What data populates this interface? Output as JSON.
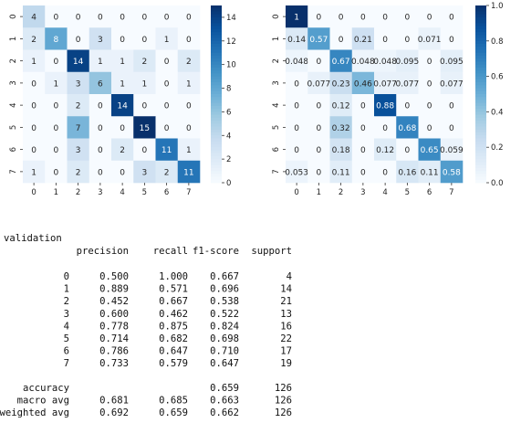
{
  "colors": {
    "scale": [
      "#f7fbff",
      "#deebf7",
      "#c6dbef",
      "#9ecae1",
      "#6baed6",
      "#4292c6",
      "#2171b5",
      "#08519c",
      "#08306b"
    ],
    "text_light": "#ffffff",
    "text_dark": "#262626"
  },
  "chart_data": [
    {
      "type": "heatmap",
      "title": "",
      "x": [
        "0",
        "1",
        "2",
        "3",
        "4",
        "5",
        "6",
        "7"
      ],
      "y": [
        "0",
        "1",
        "2",
        "3",
        "4",
        "5",
        "6",
        "7"
      ],
      "vmin": 0,
      "vmax": 15,
      "colorbar_ticks": [
        "0",
        "2",
        "4",
        "6",
        "8",
        "10",
        "12",
        "14"
      ],
      "colorbar_tick_values": [
        0,
        2,
        4,
        6,
        8,
        10,
        12,
        14
      ],
      "values": [
        [
          4,
          0,
          0,
          0,
          0,
          0,
          0,
          0
        ],
        [
          2,
          8,
          0,
          3,
          0,
          0,
          1,
          0
        ],
        [
          1,
          0,
          14,
          1,
          1,
          2,
          0,
          2
        ],
        [
          0,
          1,
          3,
          6,
          1,
          1,
          0,
          1
        ],
        [
          0,
          0,
          2,
          0,
          14,
          0,
          0,
          0
        ],
        [
          0,
          0,
          7,
          0,
          0,
          15,
          0,
          0
        ],
        [
          0,
          0,
          3,
          0,
          2,
          0,
          11,
          1
        ],
        [
          1,
          0,
          2,
          0,
          0,
          3,
          2,
          11
        ]
      ],
      "labels": [
        [
          "4",
          "0",
          "0",
          "0",
          "0",
          "0",
          "0",
          "0"
        ],
        [
          "2",
          "8",
          "0",
          "3",
          "0",
          "0",
          "1",
          "0"
        ],
        [
          "1",
          "0",
          "14",
          "1",
          "1",
          "2",
          "0",
          "2"
        ],
        [
          "0",
          "1",
          "3",
          "6",
          "1",
          "1",
          "0",
          "1"
        ],
        [
          "0",
          "0",
          "2",
          "0",
          "14",
          "0",
          "0",
          "0"
        ],
        [
          "0",
          "0",
          "7",
          "0",
          "0",
          "15",
          "0",
          "0"
        ],
        [
          "0",
          "0",
          "3",
          "0",
          "2",
          "0",
          "11",
          "1"
        ],
        [
          "1",
          "0",
          "2",
          "0",
          "0",
          "3",
          "2",
          "11"
        ]
      ]
    },
    {
      "type": "heatmap",
      "title": "",
      "x": [
        "0",
        "1",
        "2",
        "3",
        "4",
        "5",
        "6",
        "7"
      ],
      "y": [
        "0",
        "1",
        "2",
        "3",
        "4",
        "5",
        "6",
        "7"
      ],
      "vmin": 0,
      "vmax": 1,
      "colorbar_ticks": [
        "0.0",
        "0.2",
        "0.4",
        "0.6",
        "0.8",
        "1.0"
      ],
      "colorbar_tick_values": [
        0,
        0.2,
        0.4,
        0.6,
        0.8,
        1.0
      ],
      "values": [
        [
          1,
          0,
          0,
          0,
          0,
          0,
          0,
          0
        ],
        [
          0.14,
          0.57,
          0,
          0.21,
          0,
          0,
          0.071,
          0
        ],
        [
          0.048,
          0,
          0.67,
          0.048,
          0.048,
          0.095,
          0,
          0.095
        ],
        [
          0,
          0.077,
          0.23,
          0.46,
          0.077,
          0.077,
          0,
          0.077
        ],
        [
          0,
          0,
          0.12,
          0,
          0.88,
          0,
          0,
          0
        ],
        [
          0,
          0,
          0.32,
          0,
          0,
          0.68,
          0,
          0
        ],
        [
          0,
          0,
          0.18,
          0,
          0.12,
          0,
          0.65,
          0.059
        ],
        [
          0.053,
          0,
          0.11,
          0,
          0,
          0.16,
          0.11,
          0.58
        ]
      ],
      "labels": [
        [
          "1",
          "0",
          "0",
          "0",
          "0",
          "0",
          "0",
          "0"
        ],
        [
          "0.14",
          "0.57",
          "0",
          "0.21",
          "0",
          "0",
          "0.071",
          "0"
        ],
        [
          "0.048",
          "0",
          "0.67",
          "0.048",
          "0.048",
          "0.095",
          "0",
          "0.095"
        ],
        [
          "0",
          "0.077",
          "0.23",
          "0.46",
          "0.077",
          "0.077",
          "0",
          "0.077"
        ],
        [
          "0",
          "0",
          "0.12",
          "0",
          "0.88",
          "0",
          "0",
          "0"
        ],
        [
          "0",
          "0",
          "0.32",
          "0",
          "0",
          "0.68",
          "0",
          "0"
        ],
        [
          "0",
          "0",
          "0.18",
          "0",
          "0.12",
          "0",
          "0.65",
          "0.059"
        ],
        [
          "0.053",
          "0",
          "0.11",
          "0",
          "0",
          "0.16",
          "0.11",
          "0.58"
        ]
      ]
    }
  ],
  "report": {
    "title": "validation",
    "headers": [
      "precision",
      "recall",
      "f1-score",
      "support"
    ],
    "rows": [
      [
        "0",
        "0.500",
        "1.000",
        "0.667",
        "4"
      ],
      [
        "1",
        "0.889",
        "0.571",
        "0.696",
        "14"
      ],
      [
        "2",
        "0.452",
        "0.667",
        "0.538",
        "21"
      ],
      [
        "3",
        "0.600",
        "0.462",
        "0.522",
        "13"
      ],
      [
        "4",
        "0.778",
        "0.875",
        "0.824",
        "16"
      ],
      [
        "5",
        "0.714",
        "0.682",
        "0.698",
        "22"
      ],
      [
        "6",
        "0.786",
        "0.647",
        "0.710",
        "17"
      ],
      [
        "7",
        "0.733",
        "0.579",
        "0.647",
        "19"
      ]
    ],
    "summary": [
      [
        "accuracy",
        "",
        "",
        "0.659",
        "126"
      ],
      [
        "macro avg",
        "0.681",
        "0.685",
        "0.663",
        "126"
      ],
      [
        "weighted avg",
        "0.692",
        "0.659",
        "0.662",
        "126"
      ]
    ]
  }
}
